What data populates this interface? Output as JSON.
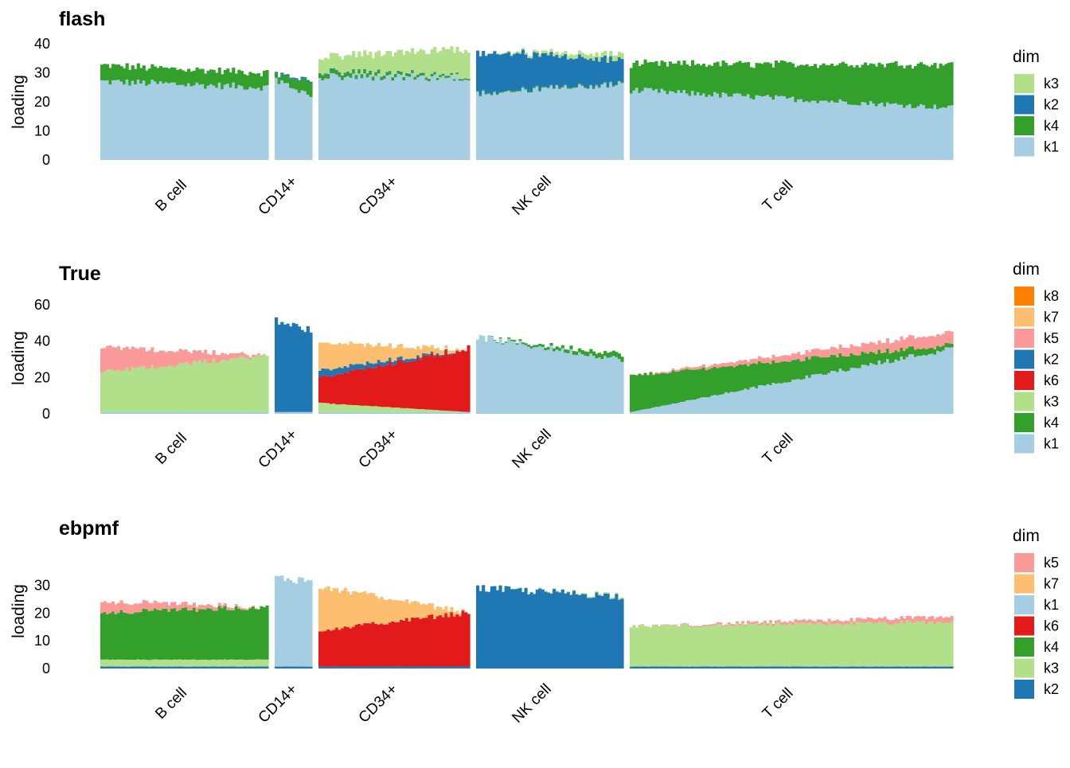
{
  "figure": {
    "type": "structure-plot"
  },
  "chart_data": [
    {
      "type": "bar",
      "subtype": "stacked-structure",
      "title": "flash",
      "ylabel": "loading",
      "xlabel": "",
      "ylim": [
        0,
        40
      ],
      "yticks": [
        "0",
        "10",
        "20",
        "30",
        "40"
      ],
      "groups": [
        {
          "name": "B cell",
          "n": 60
        },
        {
          "name": "CD14+",
          "n": 13
        },
        {
          "name": "CD34+",
          "n": 54
        },
        {
          "name": "NK cell",
          "n": 52
        },
        {
          "name": "T cell",
          "n": 116
        }
      ],
      "legend": {
        "title": "dim",
        "position": "right",
        "items": [
          "k3",
          "k2",
          "k4",
          "k1"
        ]
      },
      "colors": {
        "k1": "#A6CEE3",
        "k2": "#1F78B4",
        "k3": "#B2DF8A",
        "k4": "#33A02C"
      },
      "stack_order": [
        "k1",
        "k4",
        "k2",
        "k3"
      ],
      "series": [
        {
          "name": "k1",
          "values_by_group": {
            "B cell": [
              27,
              25
            ],
            "CD14+": [
              28,
              22
            ],
            "CD34+": [
              28.5,
              28.5
            ],
            "NK cell": [
              23,
              26
            ],
            "T cell": [
              24,
              18
            ]
          }
        },
        {
          "name": "k4",
          "values_by_group": {
            "B cell": [
              5.5,
              5
            ],
            "CD14+": [
              1.5,
              5
            ],
            "CD34+": [
              1.5,
              0.3
            ],
            "NK cell": [
              0.3,
              0.3
            ],
            "T cell": [
              9,
              15
            ]
          }
        },
        {
          "name": "k2",
          "values_by_group": {
            "B cell": [
              0,
              0
            ],
            "CD14+": [
              0.5,
              0.5
            ],
            "CD34+": [
              0.3,
              0.2
            ],
            "NK cell": [
              14,
              8
            ],
            "T cell": [
              0,
              0
            ]
          }
        },
        {
          "name": "k3",
          "values_by_group": {
            "B cell": [
              0,
              0
            ],
            "CD14+": [
              0,
              0
            ],
            "CD34+": [
              5,
              9.5
            ],
            "NK cell": [
              0,
              2
            ],
            "T cell": [
              0,
              0
            ]
          }
        }
      ]
    },
    {
      "type": "bar",
      "subtype": "stacked-structure",
      "title": "True",
      "ylabel": "loading",
      "xlabel": "",
      "ylim": [
        0,
        60
      ],
      "yticks": [
        "0",
        "20",
        "40",
        "60"
      ],
      "groups": [
        {
          "name": "B cell",
          "n": 60
        },
        {
          "name": "CD14+",
          "n": 13
        },
        {
          "name": "CD34+",
          "n": 54
        },
        {
          "name": "NK cell",
          "n": 52
        },
        {
          "name": "T cell",
          "n": 116
        }
      ],
      "legend": {
        "title": "dim",
        "position": "right",
        "items": [
          "k8",
          "k7",
          "k5",
          "k2",
          "k6",
          "k3",
          "k4",
          "k1"
        ]
      },
      "colors": {
        "k1": "#A6CEE3",
        "k2": "#1F78B4",
        "k3": "#B2DF8A",
        "k4": "#33A02C",
        "k5": "#FB9A99",
        "k6": "#E31A1C",
        "k7": "#FDBF6F",
        "k8": "#FF7F00"
      },
      "stack_order": [
        "k1",
        "k4",
        "k3",
        "k6",
        "k2",
        "k5",
        "k7",
        "k8"
      ],
      "series": [
        {
          "name": "k1",
          "values_by_group": {
            "B cell": [
              1,
              1
            ],
            "CD14+": [
              1,
              1
            ],
            "CD34+": [
              1,
              1
            ],
            "NK cell": [
              42,
              30
            ],
            "T cell": [
              1,
              36
            ]
          }
        },
        {
          "name": "k4",
          "values_by_group": {
            "B cell": [
              0,
              0
            ],
            "CD14+": [
              0,
              0
            ],
            "CD34+": [
              0,
              0
            ],
            "NK cell": [
              0,
              3
            ],
            "T cell": [
              20,
              2
            ]
          }
        },
        {
          "name": "k3",
          "values_by_group": {
            "B cell": [
              22,
              31
            ],
            "CD14+": [
              0,
              0
            ],
            "CD34+": [
              5,
              0
            ],
            "NK cell": [
              0,
              0
            ],
            "T cell": [
              0,
              0
            ]
          }
        },
        {
          "name": "k6",
          "values_by_group": {
            "B cell": [
              0,
              0
            ],
            "CD14+": [
              0,
              0
            ],
            "CD34+": [
              14,
              35
            ],
            "NK cell": [
              0,
              0
            ],
            "T cell": [
              0,
              0
            ]
          }
        },
        {
          "name": "k2",
          "values_by_group": {
            "B cell": [
              0,
              0
            ],
            "CD14+": [
              50,
              45
            ],
            "CD34+": [
              4,
              0
            ],
            "NK cell": [
              0,
              0
            ],
            "T cell": [
              0,
              0
            ]
          }
        },
        {
          "name": "k5",
          "values_by_group": {
            "B cell": [
              14,
              0
            ],
            "CD14+": [
              0,
              0
            ],
            "CD34+": [
              0,
              0
            ],
            "NK cell": [
              0,
              0
            ],
            "T cell": [
              0,
              7
            ]
          }
        },
        {
          "name": "k7",
          "values_by_group": {
            "B cell": [
              0,
              0
            ],
            "CD14+": [
              0,
              0
            ],
            "CD34+": [
              15,
              0
            ],
            "NK cell": [
              0,
              0
            ],
            "T cell": [
              0,
              0
            ]
          }
        },
        {
          "name": "k8",
          "values_by_group": {
            "B cell": [
              0,
              0
            ],
            "CD14+": [
              0,
              0
            ],
            "CD34+": [
              0,
              0
            ],
            "NK cell": [
              0,
              0
            ],
            "T cell": [
              0,
              0
            ]
          }
        }
      ]
    },
    {
      "type": "bar",
      "subtype": "stacked-structure",
      "title": "ebpmf",
      "ylabel": "loading",
      "xlabel": "",
      "ylim": [
        0,
        35
      ],
      "yticks": [
        "0",
        "10",
        "20",
        "30"
      ],
      "groups": [
        {
          "name": "B cell",
          "n": 60
        },
        {
          "name": "CD14+",
          "n": 13
        },
        {
          "name": "CD34+",
          "n": 54
        },
        {
          "name": "NK cell",
          "n": 52
        },
        {
          "name": "T cell",
          "n": 116
        }
      ],
      "legend": {
        "title": "dim",
        "position": "right",
        "items": [
          "k5",
          "k7",
          "k1",
          "k6",
          "k4",
          "k3",
          "k2"
        ]
      },
      "colors": {
        "k1": "#A6CEE3",
        "k2": "#1F78B4",
        "k3": "#B2DF8A",
        "k4": "#33A02C",
        "k5": "#FB9A99",
        "k6": "#E31A1C",
        "k7": "#FDBF6F"
      },
      "stack_order": [
        "k2",
        "k3",
        "k4",
        "k6",
        "k1",
        "k7",
        "k5"
      ],
      "series": [
        {
          "name": "k2",
          "values_by_group": {
            "B cell": [
              0.7,
              0.7
            ],
            "CD14+": [
              0.7,
              0.7
            ],
            "CD34+": [
              0.7,
              0.7
            ],
            "NK cell": [
              29,
              26
            ],
            "T cell": [
              0.7,
              0.7
            ]
          }
        },
        {
          "name": "k3",
          "values_by_group": {
            "B cell": [
              2.5,
              2.5
            ],
            "CD14+": [
              0,
              0
            ],
            "CD34+": [
              0,
              0
            ],
            "NK cell": [
              0,
              0.5
            ],
            "T cell": [
              14.5,
              16
            ]
          }
        },
        {
          "name": "k4",
          "values_by_group": {
            "B cell": [
              17,
              19
            ],
            "CD14+": [
              0,
              0
            ],
            "CD34+": [
              0,
              0
            ],
            "NK cell": [
              0,
              0
            ],
            "T cell": [
              0,
              0
            ]
          }
        },
        {
          "name": "k6",
          "values_by_group": {
            "B cell": [
              0,
              0
            ],
            "CD14+": [
              0,
              0
            ],
            "CD34+": [
              13,
              19.5
            ],
            "NK cell": [
              0,
              0
            ],
            "T cell": [
              0,
              0
            ]
          }
        },
        {
          "name": "k1",
          "values_by_group": {
            "B cell": [
              0,
              0
            ],
            "CD14+": [
              32,
              31
            ],
            "CD34+": [
              0,
              0
            ],
            "NK cell": [
              0,
              0
            ],
            "T cell": [
              0,
              0
            ]
          }
        },
        {
          "name": "k7",
          "values_by_group": {
            "B cell": [
              0,
              0
            ],
            "CD14+": [
              0,
              0
            ],
            "CD34+": [
              16,
              0
            ],
            "NK cell": [
              0,
              0
            ],
            "T cell": [
              0,
              0
            ]
          }
        },
        {
          "name": "k5",
          "values_by_group": {
            "B cell": [
              4,
              0
            ],
            "CD14+": [
              0,
              0
            ],
            "CD34+": [
              0,
              0
            ],
            "NK cell": [
              0,
              0
            ],
            "T cell": [
              0,
              2
            ]
          }
        }
      ]
    }
  ]
}
